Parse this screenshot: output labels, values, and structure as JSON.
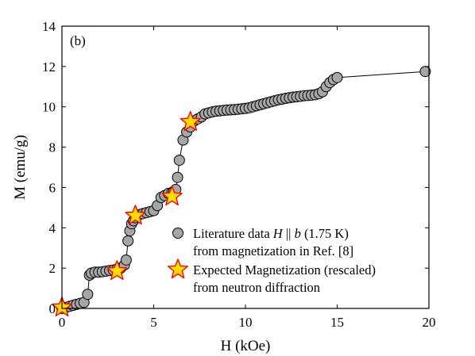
{
  "chart_data": {
    "type": "scatter",
    "panel_label": "(b)",
    "xlabel": "H (kOe)",
    "ylabel": "M (emu/g)",
    "xlim": [
      0,
      20
    ],
    "ylim": [
      0,
      14
    ],
    "xticks": [
      0,
      5,
      10,
      15,
      20
    ],
    "yticks": [
      0,
      2,
      4,
      6,
      8,
      10,
      12,
      14
    ],
    "grid": false,
    "legend_position": "lower-right",
    "series": [
      {
        "name_parts": [
          "Literature data ",
          "H",
          " || ",
          "b",
          " (1.75 K)"
        ],
        "name_line2": "from magnetization in Ref. [8]",
        "marker": "circle",
        "line": true,
        "color": "#a6a6a6",
        "edge_color": "#000000",
        "x": [
          0.0,
          0.2,
          0.4,
          0.6,
          0.8,
          1.0,
          1.2,
          1.4,
          1.5,
          1.6,
          1.8,
          2.0,
          2.2,
          2.4,
          2.6,
          2.8,
          3.0,
          3.2,
          3.4,
          3.5,
          3.6,
          3.7,
          3.8,
          3.9,
          4.0,
          4.2,
          4.4,
          4.6,
          4.8,
          5.0,
          5.2,
          5.4,
          5.6,
          5.8,
          6.0,
          6.1,
          6.2,
          6.3,
          6.4,
          6.6,
          6.8,
          7.0,
          7.2,
          7.4,
          7.6,
          7.8,
          8.0,
          8.2,
          8.4,
          8.6,
          8.8,
          9.0,
          9.2,
          9.4,
          9.6,
          9.8,
          10.0,
          10.2,
          10.4,
          10.6,
          10.8,
          11.0,
          11.2,
          11.4,
          11.6,
          11.8,
          12.0,
          12.2,
          12.4,
          12.6,
          12.8,
          13.0,
          13.2,
          13.4,
          13.6,
          13.8,
          14.0,
          14.2,
          14.4,
          14.6,
          14.8,
          15.0,
          19.8
        ],
        "y": [
          0.0,
          0.05,
          0.1,
          0.15,
          0.2,
          0.25,
          0.3,
          0.7,
          1.65,
          1.75,
          1.8,
          1.8,
          1.82,
          1.85,
          1.88,
          1.9,
          1.95,
          2.0,
          2.15,
          2.4,
          3.35,
          3.85,
          4.2,
          4.35,
          4.5,
          4.65,
          4.7,
          4.75,
          4.8,
          4.85,
          5.1,
          5.5,
          5.6,
          5.7,
          5.75,
          5.8,
          5.9,
          6.5,
          7.35,
          8.35,
          8.75,
          9.0,
          9.3,
          9.4,
          9.5,
          9.65,
          9.7,
          9.75,
          9.78,
          9.8,
          9.82,
          9.84,
          9.85,
          9.86,
          9.88,
          9.9,
          9.92,
          9.95,
          10.0,
          10.05,
          10.1,
          10.15,
          10.2,
          10.25,
          10.3,
          10.35,
          10.38,
          10.42,
          10.45,
          10.48,
          10.5,
          10.52,
          10.55,
          10.56,
          10.58,
          10.6,
          10.65,
          10.75,
          11.0,
          11.2,
          11.35,
          11.45,
          11.75
        ]
      },
      {
        "name": "Expected Magnetization (rescaled)",
        "name_line2": "from neutron diffraction",
        "marker": "star",
        "line": false,
        "color": "#ffdd00",
        "edge_color": "#ff0000",
        "x": [
          0,
          3,
          4,
          6,
          7
        ],
        "y": [
          0.05,
          1.85,
          4.6,
          5.55,
          9.25
        ]
      }
    ]
  }
}
